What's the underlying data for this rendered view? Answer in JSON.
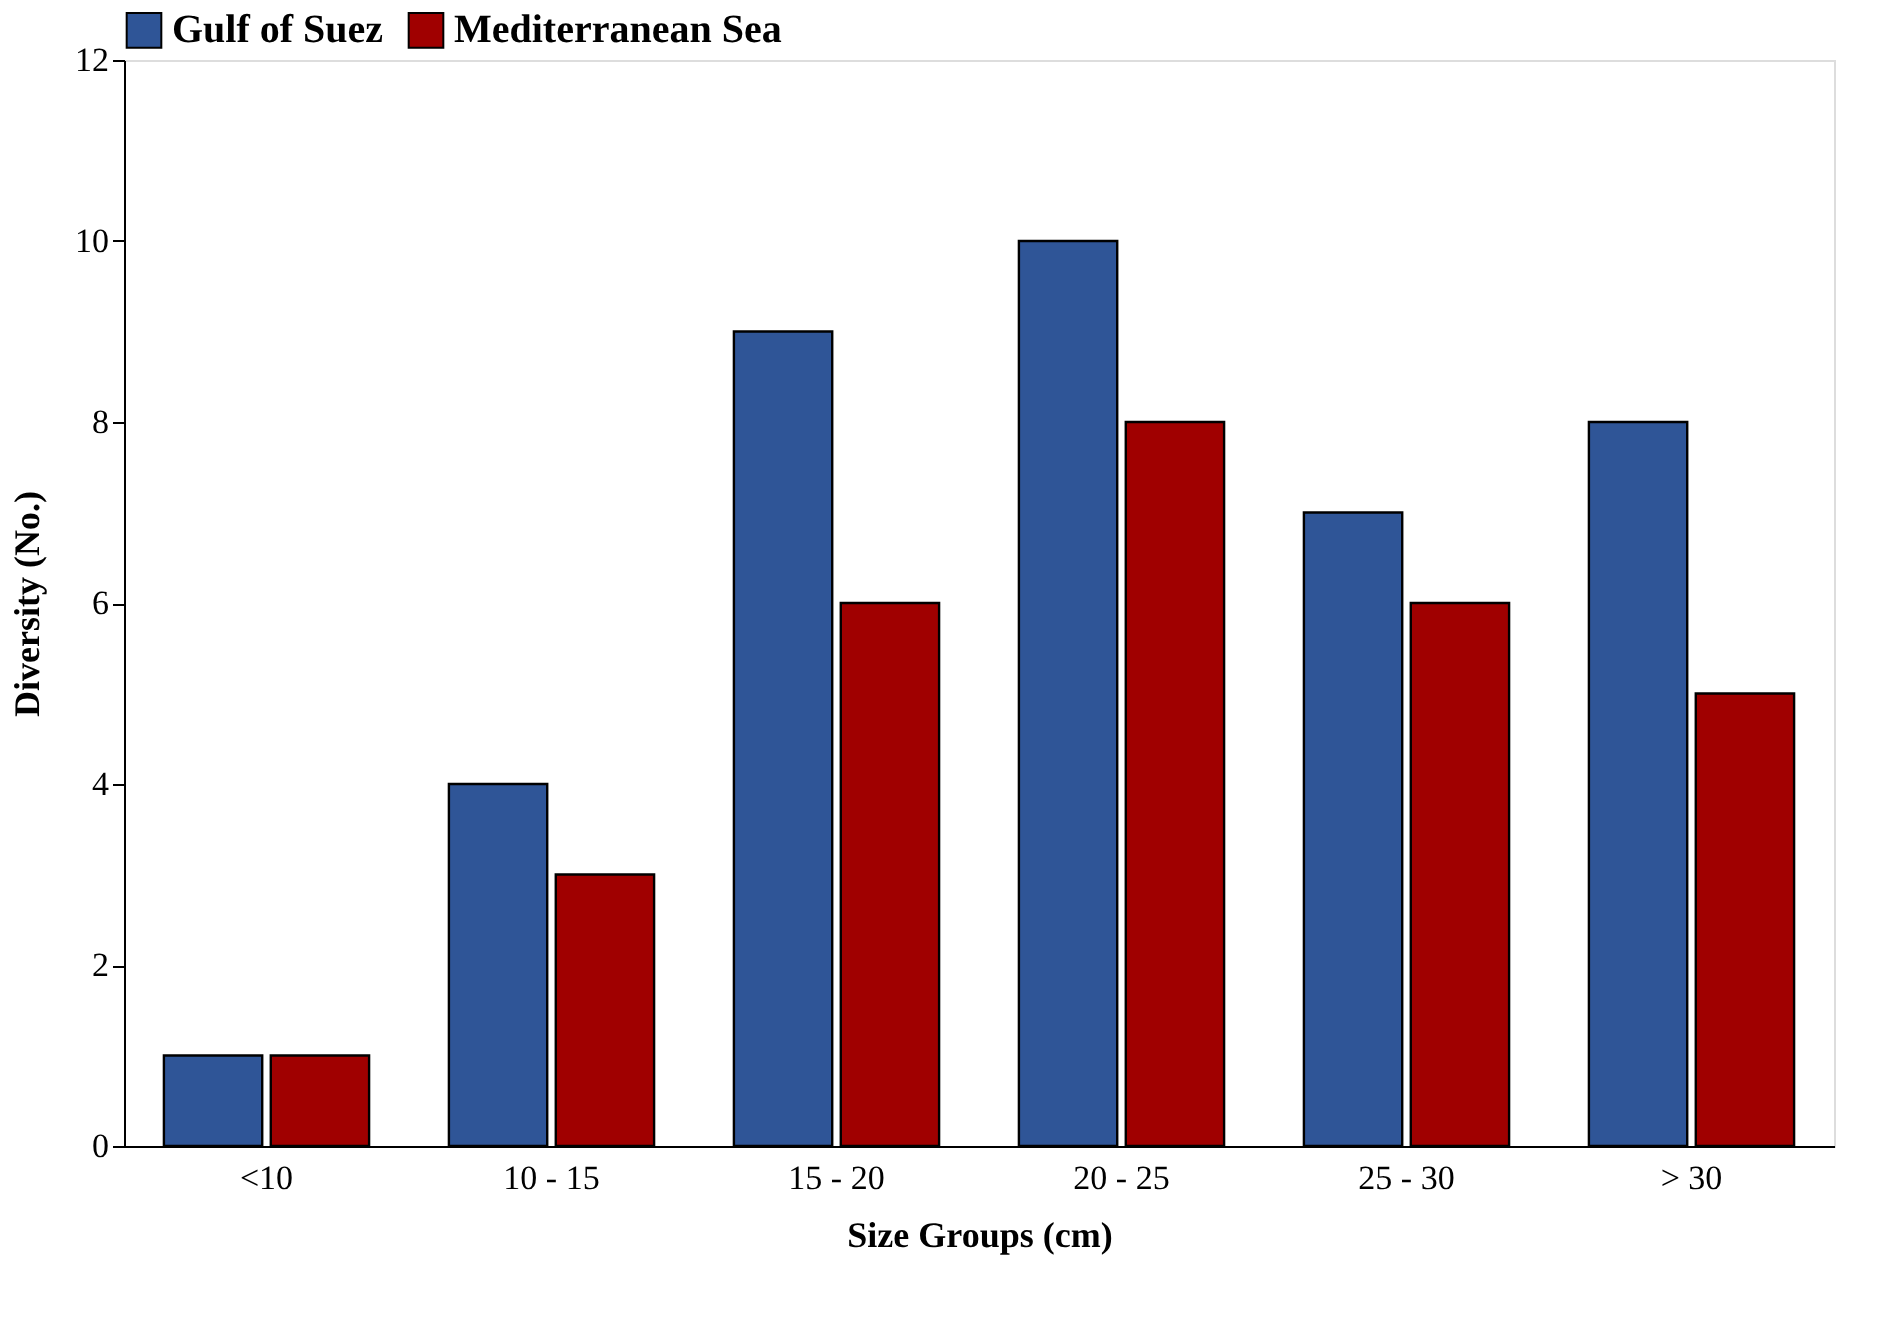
{
  "chart_data": {
    "type": "bar",
    "xlabel": "Size Groups (cm)",
    "ylabel": "Diversity (No.)",
    "categories": [
      "<10",
      "10 - 15",
      "15 - 20",
      "20 - 25",
      "25 - 30",
      "> 30"
    ],
    "series": [
      {
        "name": "Gulf of Suez",
        "color": "#2f5597",
        "values": [
          1,
          4,
          9,
          10,
          7,
          8
        ]
      },
      {
        "name": "Mediterranean Sea",
        "color": "#a00000",
        "values": [
          1,
          3,
          6,
          8,
          6,
          5
        ]
      }
    ],
    "ylim": [
      0,
      12
    ],
    "yticks": [
      0,
      2,
      4,
      6,
      8,
      10,
      12
    ],
    "grid": false,
    "legend": "top"
  }
}
